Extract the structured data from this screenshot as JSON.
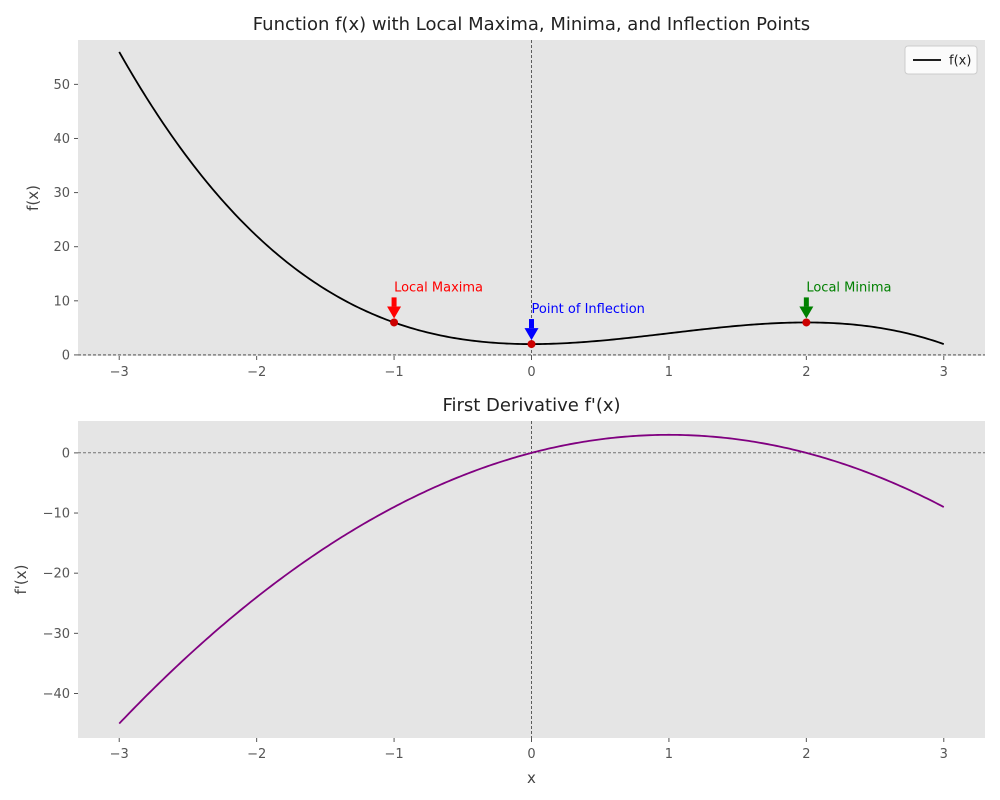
{
  "chart_data": [
    {
      "type": "line",
      "title": "Function f(x) with Local Maxima, Minima, and Inflection Points",
      "xlabel": "",
      "ylabel": "f(x)",
      "xlim": [
        -3.3,
        3.3
      ],
      "ylim": [
        -0.2,
        58.2
      ],
      "xticks": [
        -3,
        -2,
        -1,
        0,
        1,
        2,
        3
      ],
      "xtick_labels": [
        "−3",
        "−2",
        "−1",
        "0",
        "1",
        "2",
        "3"
      ],
      "yticks": [
        0,
        10,
        20,
        30,
        40,
        50
      ],
      "ytick_labels": [
        "0",
        "10",
        "20",
        "30",
        "40",
        "50"
      ],
      "grid": false,
      "legend": {
        "placement": "top-right",
        "entries": [
          "f(x)"
        ]
      },
      "series": [
        {
          "name": "f(x)",
          "color": "#000000",
          "x": [
            -3.0,
            -2.5,
            -2.0,
            -1.5,
            -1.0,
            -0.5,
            0.0,
            0.5,
            1.0,
            1.5,
            2.0,
            2.5,
            3.0
          ],
          "y": [
            56,
            35.75,
            22,
            13.25,
            6,
            2.75,
            2,
            3.25,
            4,
            5.25,
            6,
            4.75,
            2
          ],
          "formula": "-x^3 + 3x^2 + 2"
        }
      ],
      "reference_lines": [
        {
          "axis": "y",
          "value": 0,
          "color": "#000000",
          "style": "dashed"
        },
        {
          "axis": "x",
          "value": 0,
          "color": "#000000",
          "style": "dashed"
        }
      ],
      "points": [
        {
          "x": -1,
          "y": 6,
          "color": "#cc0000"
        },
        {
          "x": 0,
          "y": 2,
          "color": "#cc0000"
        },
        {
          "x": 2,
          "y": 6,
          "color": "#cc0000"
        }
      ],
      "annotations": [
        {
          "text": "Local Maxima",
          "x": -1,
          "y": 6,
          "text_x": -1,
          "text_y": 11,
          "color": "#ff0000"
        },
        {
          "text": "Point of Inflection",
          "x": 0,
          "y": 2,
          "text_x": 0,
          "text_y": 7,
          "color": "#0000ff"
        },
        {
          "text": "Local Minima",
          "x": 2,
          "y": 6,
          "text_x": 2,
          "text_y": 11,
          "color": "#008000"
        }
      ]
    },
    {
      "type": "line",
      "title": "First Derivative f'(x)",
      "xlabel": "x",
      "ylabel": "f'(x)",
      "xlim": [
        -3.3,
        3.3
      ],
      "ylim": [
        -47.4,
        5.3
      ],
      "xticks": [
        -3,
        -2,
        -1,
        0,
        1,
        2,
        3
      ],
      "xtick_labels": [
        "−3",
        "−2",
        "−1",
        "0",
        "1",
        "2",
        "3"
      ],
      "yticks": [
        -40,
        -30,
        -20,
        -10,
        0
      ],
      "ytick_labels": [
        "−40",
        "−30",
        "−20",
        "−10",
        "0"
      ],
      "grid": false,
      "series": [
        {
          "color": "#800080",
          "x": [
            -3.0,
            -2.5,
            -2.0,
            -1.5,
            -1.0,
            -0.5,
            0.0,
            0.5,
            1.0,
            1.5,
            2.0,
            2.5,
            3.0
          ],
          "y": [
            -45,
            -33.75,
            -24,
            -15.75,
            -9,
            -3.75,
            0,
            2.25,
            3,
            2.25,
            0,
            -3.75,
            -9
          ],
          "formula": "-3x^2 + 6x"
        }
      ],
      "reference_lines": [
        {
          "axis": "y",
          "value": 0,
          "color": "#000000",
          "style": "dashed"
        },
        {
          "axis": "x",
          "value": 0,
          "color": "#000000",
          "style": "dashed"
        }
      ]
    }
  ]
}
